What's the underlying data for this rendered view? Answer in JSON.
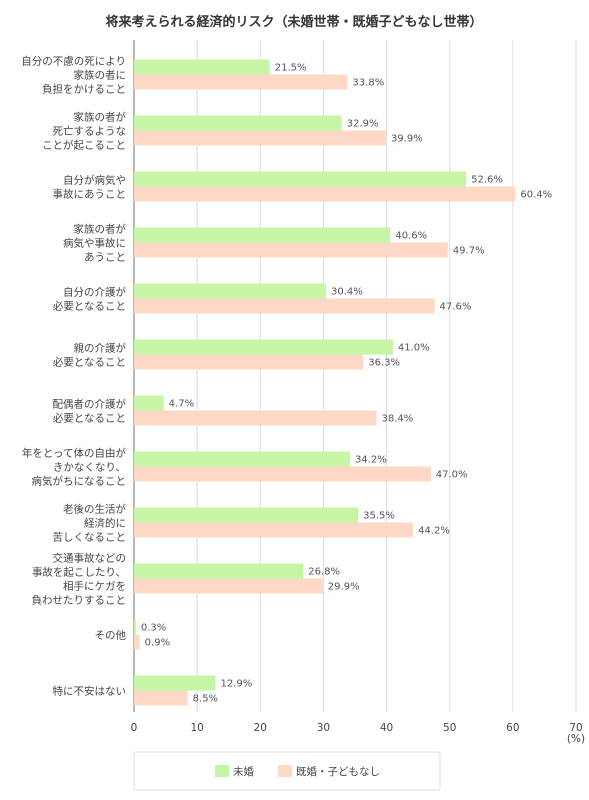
{
  "chart_data": {
    "type": "bar",
    "orientation": "horizontal",
    "title": "将来考えられる経済的リスク（未婚世帯・既婚子どもなし世帯）",
    "unit": "(%)",
    "xlim": [
      0,
      70
    ],
    "ticks": [
      0,
      10,
      20,
      30,
      40,
      50,
      60,
      70
    ],
    "grid": true,
    "legend_position": "bottom",
    "categories": [
      [
        "自分の不慮の死により",
        "家族の者に",
        "負担をかけること"
      ],
      [
        "家族の者が",
        "死亡するような",
        "ことが起こること"
      ],
      [
        "自分が病気や",
        "事故にあうこと"
      ],
      [
        "家族の者が",
        "病気や事故に",
        "あうこと"
      ],
      [
        "自分の介護が",
        "必要となること"
      ],
      [
        "親の介護が",
        "必要となること"
      ],
      [
        "配偶者の介護が",
        "必要となること"
      ],
      [
        "年をとって体の自由が",
        "きかなくなり、",
        "病気がちになること"
      ],
      [
        "老後の生活が",
        "経済的に",
        "苦しくなること"
      ],
      [
        "交通事故などの",
        "事故を起こしたり、",
        "相手にケガを",
        "負わせたりすること"
      ],
      [
        "その他"
      ],
      [
        "特に不安はない"
      ]
    ],
    "series": [
      {
        "name": "未婚",
        "color": "#c6f5a8",
        "values": [
          21.5,
          32.9,
          52.6,
          40.6,
          30.4,
          41.0,
          4.7,
          34.2,
          35.5,
          26.8,
          0.3,
          12.9
        ],
        "labels": [
          "21.5%",
          "32.9%",
          "52.6%",
          "40.6%",
          "30.4%",
          "41.0%",
          "4.7%",
          "34.2%",
          "35.5%",
          "26.8%",
          "0.3%",
          "12.9%"
        ]
      },
      {
        "name": "既婚・子どもなし",
        "color": "#fdd8c6",
        "values": [
          33.8,
          39.9,
          60.4,
          49.7,
          47.6,
          36.3,
          38.4,
          47.0,
          44.2,
          29.9,
          0.9,
          8.5
        ],
        "labels": [
          "33.8%",
          "39.9%",
          "60.4%",
          "49.7%",
          "47.6%",
          "36.3%",
          "38.4%",
          "47.0%",
          "44.2%",
          "29.9%",
          "0.9%",
          "8.5%"
        ]
      }
    ]
  }
}
